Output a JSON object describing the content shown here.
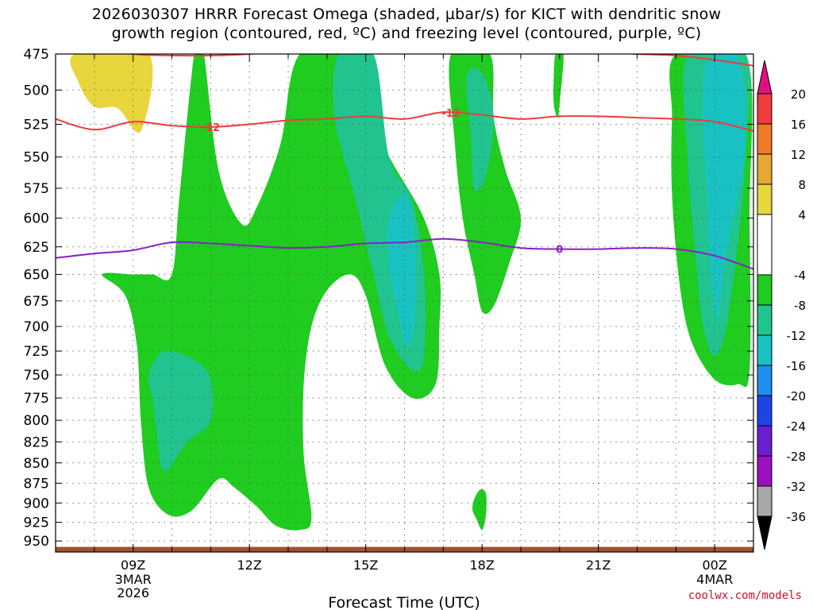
{
  "title": {
    "line1": "2026030307 HRRR Forecast Omega (shaded, µbar/s) for KICT with dendritic snow",
    "line2": "growth region (contoured, red, ºC) and freezing level (contoured, purple, ºC)"
  },
  "credit": "coolwx.com/models",
  "chart_data": {
    "type": "heatmap",
    "xlabel": "Forecast Time (UTC)",
    "ylabel": "",
    "x_range_hours": [
      7,
      25
    ],
    "y_range_mb": [
      475,
      965
    ],
    "y_ticks": [
      475,
      500,
      525,
      550,
      575,
      600,
      625,
      650,
      675,
      700,
      725,
      750,
      775,
      800,
      825,
      850,
      875,
      900,
      925,
      950
    ],
    "x_ticks": [
      {
        "hour": 9,
        "label": "09Z",
        "sub": [
          "3MAR",
          "2026"
        ]
      },
      {
        "hour": 12,
        "label": "12Z",
        "sub": []
      },
      {
        "hour": 15,
        "label": "15Z",
        "sub": []
      },
      {
        "hour": 18,
        "label": "18Z",
        "sub": []
      },
      {
        "hour": 21,
        "label": "21Z",
        "sub": []
      },
      {
        "hour": 24,
        "label": "00Z",
        "sub": [
          "4MAR"
        ]
      }
    ],
    "grid": true,
    "colorbar": {
      "placement": "right",
      "levels": [
        {
          "lo": 20,
          "hi": 24,
          "color": "#e0117f",
          "label": "20"
        },
        {
          "lo": 16,
          "hi": 20,
          "color": "#f03c3c",
          "label": "16"
        },
        {
          "lo": 12,
          "hi": 16,
          "color": "#ef7a28",
          "label": "12"
        },
        {
          "lo": 8,
          "hi": 12,
          "color": "#e6a833",
          "label": "8"
        },
        {
          "lo": 4,
          "hi": 8,
          "color": "#e8d63c",
          "label": "4"
        },
        {
          "lo": -4,
          "hi": 4,
          "color": "#ffffff",
          "label": "-4"
        },
        {
          "lo": -8,
          "hi": -4,
          "color": "#1fcc1f",
          "label": "-8"
        },
        {
          "lo": -12,
          "hi": -8,
          "color": "#21c48f",
          "label": "-12"
        },
        {
          "lo": -16,
          "hi": -12,
          "color": "#19c2c2",
          "label": "-16"
        },
        {
          "lo": -20,
          "hi": -16,
          "color": "#1e8ff0",
          "label": "-20"
        },
        {
          "lo": -24,
          "hi": -20,
          "color": "#1f44e6",
          "label": "-24"
        },
        {
          "lo": -28,
          "hi": -24,
          "color": "#6a1fd0",
          "label": "-28"
        },
        {
          "lo": -32,
          "hi": -28,
          "color": "#9b10c0",
          "label": "-32"
        },
        {
          "lo": -36,
          "hi": -32,
          "color": "#a8a8a8",
          "label": "-36"
        },
        {
          "lo": -40,
          "hi": -36,
          "color": "#000000",
          "label": ""
        }
      ]
    },
    "ground_color": "#a0522d",
    "omega_regions": [
      {
        "level": -4,
        "color": "#1fcc1f",
        "points": [
          [
            8.2,
            650
          ],
          [
            9.0,
            650
          ],
          [
            9.5,
            650
          ],
          [
            10.0,
            650
          ],
          [
            10.2,
            580
          ],
          [
            10.6,
            470
          ],
          [
            10.8,
            470
          ],
          [
            11.2,
            560
          ],
          [
            11.8,
            605
          ],
          [
            12.2,
            590
          ],
          [
            12.8,
            540
          ],
          [
            13.3,
            475
          ],
          [
            14.8,
            475
          ],
          [
            15.1,
            520
          ],
          [
            15.7,
            555
          ],
          [
            16.5,
            600
          ],
          [
            16.9,
            650
          ],
          [
            16.9,
            700
          ],
          [
            16.8,
            760
          ],
          [
            16.2,
            775
          ],
          [
            15.5,
            740
          ],
          [
            15.0,
            670
          ],
          [
            14.6,
            650
          ],
          [
            14.0,
            665
          ],
          [
            13.6,
            700
          ],
          [
            13.4,
            760
          ],
          [
            13.4,
            840
          ],
          [
            13.6,
            920
          ],
          [
            13.3,
            935
          ],
          [
            12.7,
            930
          ],
          [
            12.2,
            905
          ],
          [
            11.6,
            880
          ],
          [
            11.2,
            870
          ],
          [
            10.5,
            910
          ],
          [
            9.9,
            915
          ],
          [
            9.4,
            880
          ],
          [
            9.2,
            800
          ],
          [
            9.1,
            720
          ],
          [
            8.8,
            670
          ]
        ]
      },
      {
        "level": -4,
        "color": "#1fcc1f",
        "points": [
          [
            17.2,
            475
          ],
          [
            18.2,
            475
          ],
          [
            18.3,
            520
          ],
          [
            18.6,
            560
          ],
          [
            19.0,
            600
          ],
          [
            18.7,
            640
          ],
          [
            18.3,
            680
          ],
          [
            18.0,
            685
          ],
          [
            17.8,
            650
          ],
          [
            17.5,
            600
          ],
          [
            17.3,
            540
          ]
        ]
      },
      {
        "level": -4,
        "color": "#1fcc1f",
        "points": [
          [
            19.9,
            475
          ],
          [
            20.1,
            475
          ],
          [
            20.0,
            510
          ],
          [
            19.95,
            520
          ],
          [
            19.85,
            510
          ],
          [
            19.85,
            490
          ]
        ]
      },
      {
        "level": -4,
        "color": "#1fcc1f",
        "points": [
          [
            17.8,
            895
          ],
          [
            17.95,
            883
          ],
          [
            18.1,
            888
          ],
          [
            18.1,
            915
          ],
          [
            18.0,
            935
          ],
          [
            17.85,
            920
          ],
          [
            17.75,
            908
          ]
        ]
      },
      {
        "level": -4,
        "color": "#1fcc1f",
        "points": [
          [
            23.0,
            475
          ],
          [
            24.8,
            475
          ],
          [
            24.9,
            600
          ],
          [
            24.9,
            745
          ],
          [
            24.6,
            760
          ],
          [
            24.0,
            755
          ],
          [
            23.4,
            715
          ],
          [
            23.1,
            660
          ],
          [
            22.9,
            580
          ],
          [
            22.9,
            520
          ]
        ]
      },
      {
        "level": -8,
        "color": "#21c48f",
        "points": [
          [
            9.4,
            750
          ],
          [
            9.8,
            725
          ],
          [
            10.6,
            735
          ],
          [
            11.0,
            755
          ],
          [
            11.0,
            800
          ],
          [
            10.4,
            825
          ],
          [
            9.8,
            860
          ],
          [
            9.6,
            810
          ],
          [
            9.5,
            775
          ]
        ]
      },
      {
        "level": -8,
        "color": "#21c48f",
        "points": [
          [
            14.3,
            475
          ],
          [
            15.2,
            475
          ],
          [
            15.6,
            550
          ],
          [
            16.2,
            585
          ],
          [
            16.5,
            650
          ],
          [
            16.5,
            730
          ],
          [
            16.2,
            745
          ],
          [
            15.6,
            710
          ],
          [
            15.2,
            650
          ],
          [
            14.7,
            580
          ],
          [
            14.2,
            520
          ]
        ]
      },
      {
        "level": -8,
        "color": "#21c48f",
        "points": [
          [
            17.6,
            490
          ],
          [
            18.0,
            488
          ],
          [
            18.3,
            520
          ],
          [
            18.1,
            565
          ],
          [
            17.8,
            575
          ],
          [
            17.7,
            530
          ]
        ]
      },
      {
        "level": -8,
        "color": "#21c48f",
        "points": [
          [
            23.3,
            475
          ],
          [
            24.8,
            475
          ],
          [
            24.8,
            550
          ],
          [
            24.6,
            620
          ],
          [
            24.3,
            700
          ],
          [
            24.0,
            730
          ],
          [
            23.7,
            700
          ],
          [
            23.5,
            630
          ],
          [
            23.3,
            550
          ]
        ]
      },
      {
        "level": -12,
        "color": "#19c2c2",
        "points": [
          [
            15.6,
            600
          ],
          [
            16.0,
            580
          ],
          [
            16.2,
            600
          ],
          [
            16.3,
            660
          ],
          [
            16.2,
            710
          ],
          [
            16.0,
            715
          ],
          [
            15.8,
            680
          ],
          [
            15.6,
            640
          ]
        ]
      },
      {
        "level": -12,
        "color": "#19c2c2",
        "points": [
          [
            23.8,
            480
          ],
          [
            24.6,
            478
          ],
          [
            24.8,
            530
          ],
          [
            24.6,
            580
          ],
          [
            24.3,
            630
          ],
          [
            24.1,
            690
          ],
          [
            23.9,
            650
          ],
          [
            23.8,
            580
          ],
          [
            23.7,
            520
          ]
        ]
      },
      {
        "level": 4,
        "color": "#e8d63c",
        "points": [
          [
            7.5,
            475
          ],
          [
            9.4,
            475
          ],
          [
            9.2,
            530
          ],
          [
            8.6,
            513
          ],
          [
            8.0,
            512
          ],
          [
            7.6,
            495
          ]
        ]
      }
    ],
    "contours": [
      {
        "name": "dendritic snow growth region",
        "type": "temperature",
        "value": -12,
        "color": "#ef3b3b",
        "points": [
          [
            7,
            521
          ],
          [
            8.0,
            529
          ],
          [
            9.0,
            523
          ],
          [
            10.0,
            526
          ],
          [
            11.0,
            527
          ],
          [
            12.0,
            525
          ],
          [
            13.0,
            522
          ],
          [
            14.0,
            521
          ],
          [
            15.0,
            519
          ],
          [
            16.0,
            521
          ],
          [
            17.0,
            516
          ],
          [
            18.0,
            518
          ],
          [
            19.0,
            521
          ],
          [
            20.0,
            519
          ],
          [
            21.0,
            519
          ],
          [
            22.0,
            520
          ],
          [
            23.0,
            521
          ],
          [
            24.0,
            523
          ],
          [
            25.0,
            530
          ]
        ],
        "labels": [
          {
            "hour": 11.0,
            "text": "-12"
          },
          {
            "hour": 17.2,
            "text": "-12"
          }
        ]
      },
      {
        "name": "dendritic snow growth region",
        "type": "temperature",
        "value": -12,
        "color": "#ef3b3b",
        "points": [
          [
            8.0,
            470
          ],
          [
            9.0,
            475
          ],
          [
            10.0,
            476
          ],
          [
            11.0,
            476
          ],
          [
            12.0,
            475
          ],
          [
            13.0,
            472
          ],
          [
            14.0,
            472
          ],
          [
            15.0,
            472
          ],
          [
            16.0,
            472
          ],
          [
            17.0,
            471
          ],
          [
            18.0,
            471
          ],
          [
            19.0,
            471
          ],
          [
            20.0,
            472
          ],
          [
            21.0,
            473
          ],
          [
            22.0,
            475
          ],
          [
            23.0,
            476
          ],
          [
            24.0,
            479
          ],
          [
            25.0,
            483
          ]
        ],
        "labels": []
      },
      {
        "name": "freezing level",
        "type": "temperature",
        "value": 0,
        "color": "#8a1fc8",
        "points": [
          [
            7,
            635
          ],
          [
            8.0,
            631
          ],
          [
            9.0,
            628
          ],
          [
            10.0,
            621
          ],
          [
            11.0,
            622
          ],
          [
            12.0,
            624
          ],
          [
            13.0,
            626
          ],
          [
            14.0,
            625
          ],
          [
            15.0,
            622
          ],
          [
            16.0,
            621
          ],
          [
            17.0,
            618
          ],
          [
            18.0,
            621
          ],
          [
            19.0,
            626
          ],
          [
            20.0,
            627
          ],
          [
            21.0,
            627
          ],
          [
            22.0,
            626
          ],
          [
            23.0,
            627
          ],
          [
            24.0,
            633
          ],
          [
            25.0,
            645
          ]
        ],
        "labels": [
          {
            "hour": 20.0,
            "text": "0"
          }
        ]
      }
    ]
  }
}
